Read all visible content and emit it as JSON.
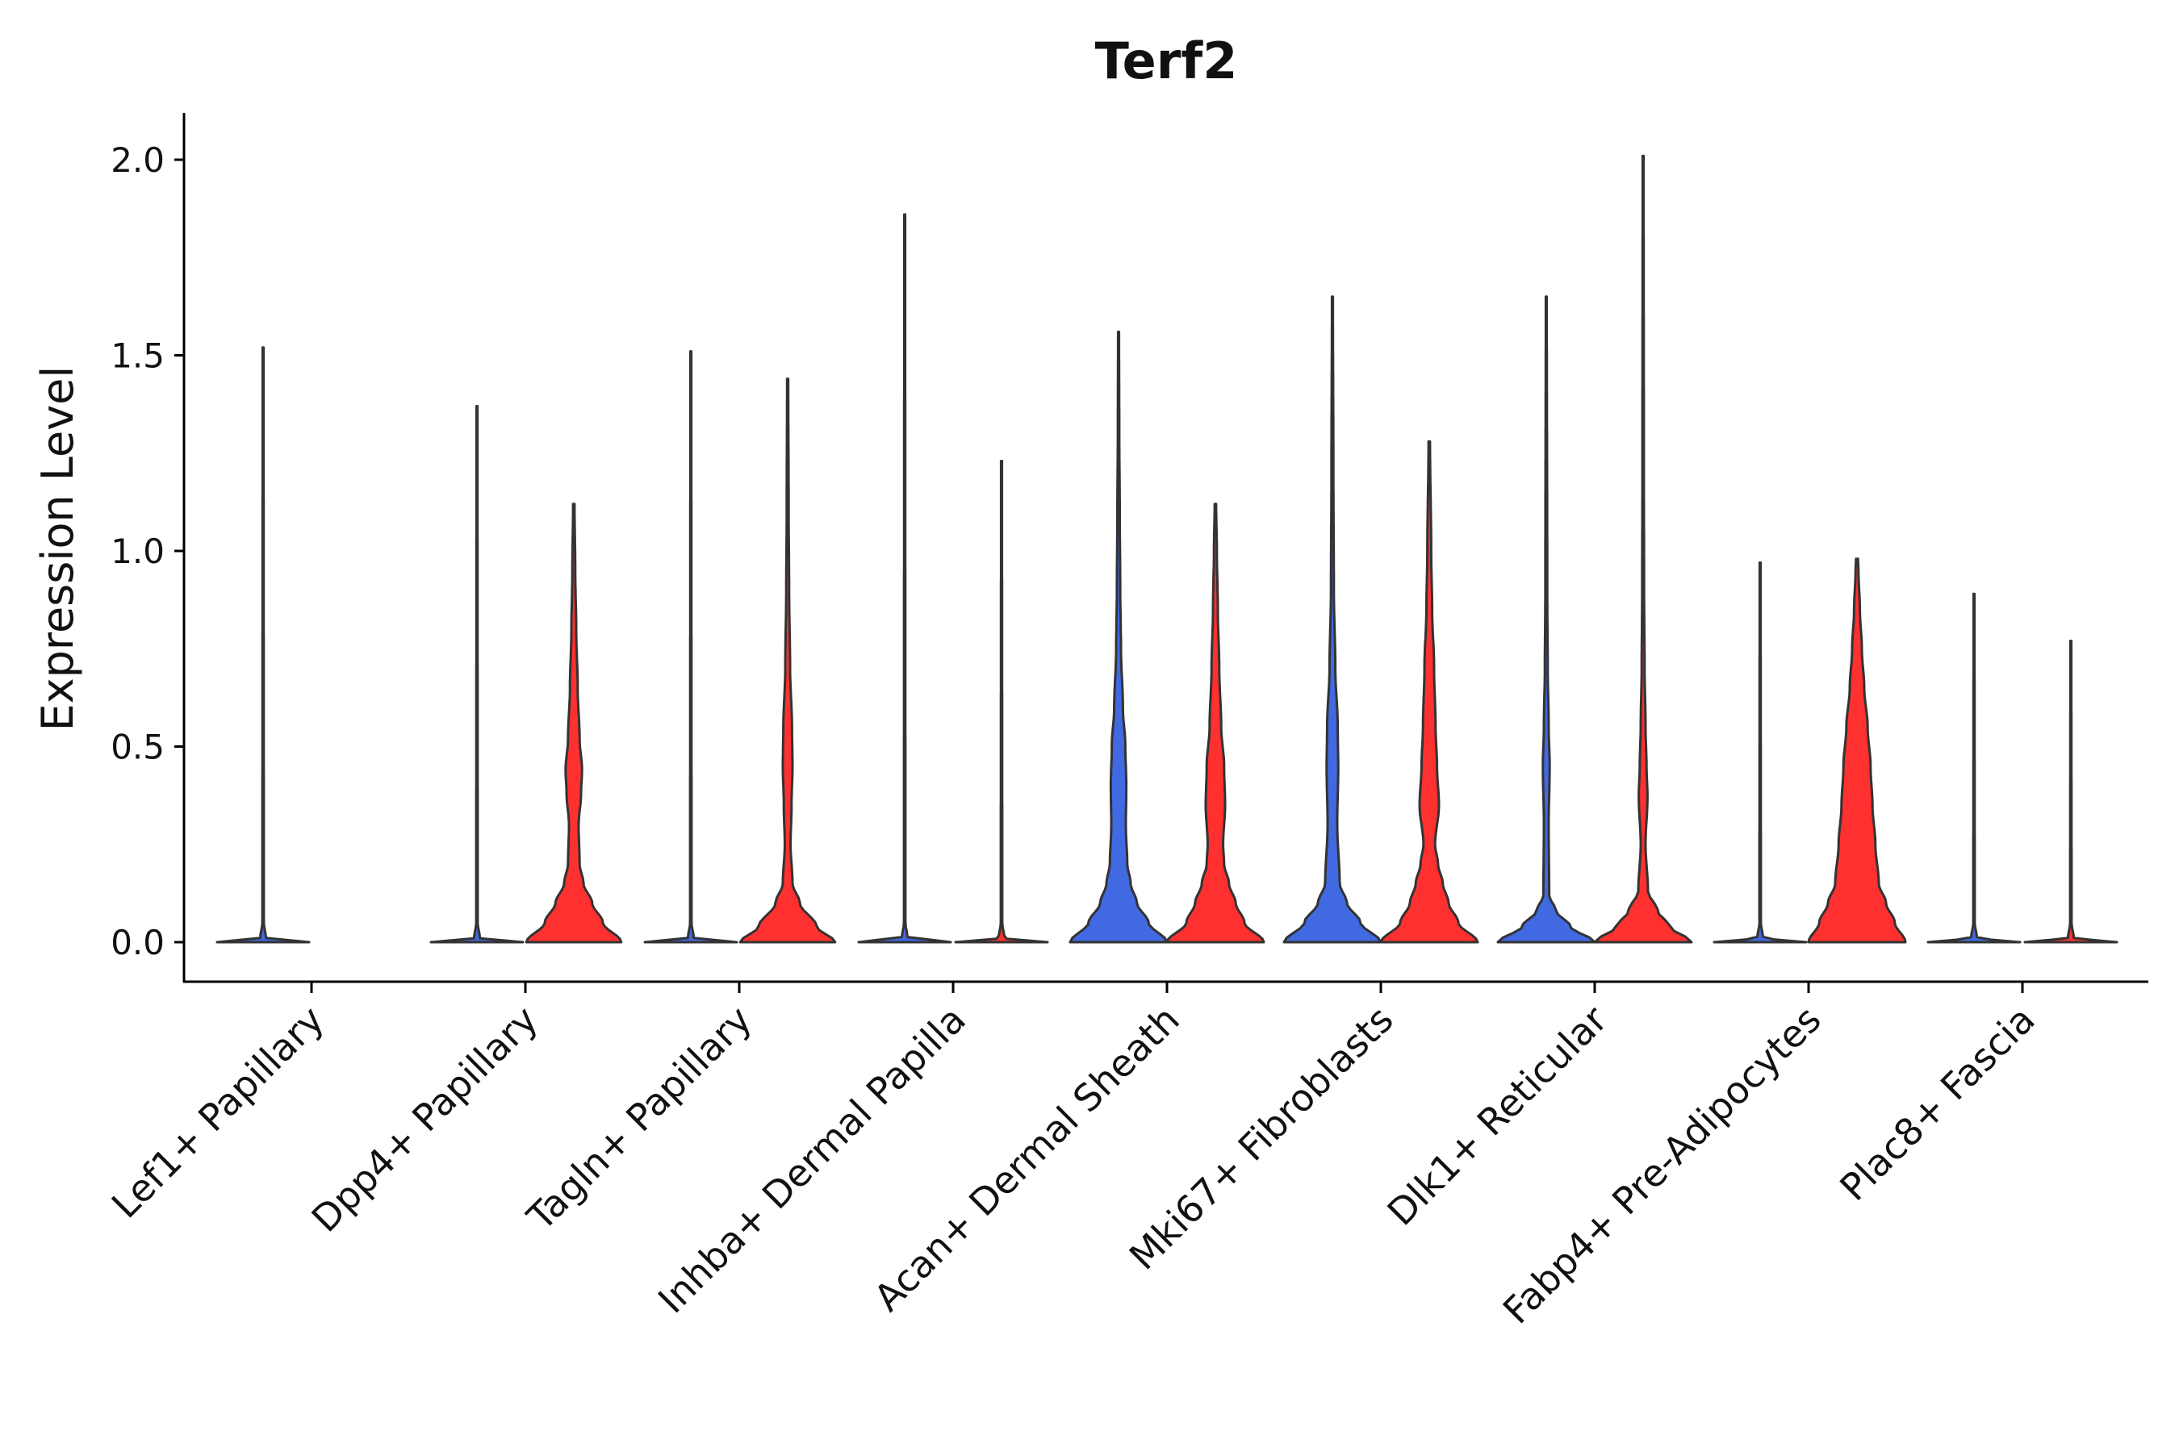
{
  "chart_data": {
    "type": "violin",
    "title": "Terf2",
    "xlabel": "",
    "ylabel": "Expression Level",
    "ylim": [
      -0.1,
      2.12
    ],
    "yticks": [
      0.0,
      0.5,
      1.0,
      1.5,
      2.0
    ],
    "ytick_labels": [
      "0.0",
      "0.5",
      "1.0",
      "1.5",
      "2.0"
    ],
    "grid": false,
    "legend": "none",
    "colors": {
      "group_a": "#4169E1",
      "group_b": "#FF3030",
      "outline": "#333333"
    },
    "categories": [
      "Lef1+ Papillary",
      "Dpp4+ Papillary",
      "Tagln+ Papillary",
      "Inhba+ Dermal Papilla",
      "Acan+ Dermal Sheath",
      "Mki67+ Fibroblasts",
      "Dlk1+ Reticular",
      "Fabp4+ Pre-Adipocytes",
      "Plac8+ Fascia"
    ],
    "series": [
      {
        "name": "group_a",
        "color": "#4169E1",
        "max_values": [
          1.52,
          1.37,
          1.51,
          1.86,
          1.56,
          1.65,
          1.65,
          0.97,
          0.89
        ]
      },
      {
        "name": "group_b",
        "color": "#FF3030",
        "max_values": [
          0.0,
          1.12,
          1.44,
          1.23,
          1.12,
          1.28,
          2.01,
          0.98,
          0.77
        ]
      }
    ],
    "violins": [
      {
        "category": "Lef1+ Papillary",
        "group": "group_a",
        "max": 1.52,
        "profile": [
          [
            0,
            0.95
          ],
          [
            0.003,
            0.6
          ],
          [
            0.01,
            0.06
          ],
          [
            0.05,
            0.015
          ],
          [
            1.52,
            0.01
          ]
        ]
      },
      {
        "category": "Lef1+ Papillary",
        "group": "group_b",
        "max": 0.0,
        "profile": []
      },
      {
        "category": "Dpp4+ Papillary",
        "group": "group_a",
        "max": 1.37,
        "profile": [
          [
            0,
            0.95
          ],
          [
            0.003,
            0.6
          ],
          [
            0.01,
            0.06
          ],
          [
            0.05,
            0.015
          ],
          [
            1.37,
            0.01
          ]
        ]
      },
      {
        "category": "Dpp4+ Papillary",
        "group": "group_b",
        "max": 1.12,
        "profile": [
          [
            0,
            0.98
          ],
          [
            0.05,
            0.6
          ],
          [
            0.1,
            0.38
          ],
          [
            0.15,
            0.2
          ],
          [
            0.2,
            0.12
          ],
          [
            0.3,
            0.1
          ],
          [
            0.38,
            0.15
          ],
          [
            0.44,
            0.17
          ],
          [
            0.52,
            0.12
          ],
          [
            0.65,
            0.08
          ],
          [
            0.8,
            0.05
          ],
          [
            0.95,
            0.03
          ],
          [
            1.12,
            0.015
          ]
        ]
      },
      {
        "category": "Tagln+ Papillary",
        "group": "group_a",
        "max": 1.51,
        "profile": [
          [
            0,
            0.95
          ],
          [
            0.003,
            0.6
          ],
          [
            0.01,
            0.06
          ],
          [
            0.05,
            0.015
          ],
          [
            1.51,
            0.01
          ]
        ]
      },
      {
        "category": "Tagln+ Papillary",
        "group": "group_b",
        "max": 1.44,
        "profile": [
          [
            0,
            0.98
          ],
          [
            0.04,
            0.6
          ],
          [
            0.1,
            0.25
          ],
          [
            0.15,
            0.1
          ],
          [
            0.25,
            0.06
          ],
          [
            0.35,
            0.08
          ],
          [
            0.45,
            0.1
          ],
          [
            0.55,
            0.09
          ],
          [
            0.7,
            0.05
          ],
          [
            0.9,
            0.03
          ],
          [
            1.1,
            0.02
          ],
          [
            1.44,
            0.012
          ]
        ]
      },
      {
        "category": "Inhba+ Dermal Papilla",
        "group": "group_a",
        "max": 1.86,
        "profile": [
          [
            0,
            0.95
          ],
          [
            0.003,
            0.6
          ],
          [
            0.01,
            0.06
          ],
          [
            0.05,
            0.015
          ],
          [
            1.86,
            0.01
          ]
        ]
      },
      {
        "category": "Inhba+ Dermal Papilla",
        "group": "group_b",
        "max": 1.23,
        "profile": [
          [
            0,
            0.95
          ],
          [
            0.003,
            0.6
          ],
          [
            0.01,
            0.06
          ],
          [
            0.05,
            0.015
          ],
          [
            1.23,
            0.01
          ]
        ]
      },
      {
        "category": "Acan+ Dermal Sheath",
        "group": "group_a",
        "max": 1.56,
        "profile": [
          [
            0,
            1.0
          ],
          [
            0.05,
            0.62
          ],
          [
            0.1,
            0.38
          ],
          [
            0.15,
            0.25
          ],
          [
            0.2,
            0.18
          ],
          [
            0.3,
            0.15
          ],
          [
            0.4,
            0.16
          ],
          [
            0.5,
            0.14
          ],
          [
            0.6,
            0.09
          ],
          [
            0.75,
            0.05
          ],
          [
            0.9,
            0.035
          ],
          [
            1.1,
            0.025
          ],
          [
            1.3,
            0.015
          ],
          [
            1.56,
            0.01
          ]
        ]
      },
      {
        "category": "Acan+ Dermal Sheath",
        "group": "group_b",
        "max": 1.12,
        "profile": [
          [
            0,
            1.0
          ],
          [
            0.05,
            0.6
          ],
          [
            0.1,
            0.42
          ],
          [
            0.15,
            0.28
          ],
          [
            0.2,
            0.18
          ],
          [
            0.25,
            0.16
          ],
          [
            0.35,
            0.2
          ],
          [
            0.45,
            0.18
          ],
          [
            0.55,
            0.12
          ],
          [
            0.7,
            0.08
          ],
          [
            0.85,
            0.05
          ],
          [
            1.0,
            0.03
          ],
          [
            1.12,
            0.015
          ]
        ]
      },
      {
        "category": "Mki67+ Fibroblasts",
        "group": "group_a",
        "max": 1.65,
        "profile": [
          [
            0,
            1.0
          ],
          [
            0.05,
            0.58
          ],
          [
            0.1,
            0.3
          ],
          [
            0.15,
            0.15
          ],
          [
            0.3,
            0.1
          ],
          [
            0.45,
            0.12
          ],
          [
            0.55,
            0.11
          ],
          [
            0.7,
            0.06
          ],
          [
            0.9,
            0.03
          ],
          [
            1.2,
            0.02
          ],
          [
            1.65,
            0.01
          ]
        ]
      },
      {
        "category": "Mki67+ Fibroblasts",
        "group": "group_b",
        "max": 1.28,
        "profile": [
          [
            0,
            1.0
          ],
          [
            0.05,
            0.6
          ],
          [
            0.1,
            0.4
          ],
          [
            0.15,
            0.28
          ],
          [
            0.2,
            0.18
          ],
          [
            0.25,
            0.12
          ],
          [
            0.35,
            0.2
          ],
          [
            0.45,
            0.16
          ],
          [
            0.55,
            0.13
          ],
          [
            0.7,
            0.1
          ],
          [
            0.85,
            0.06
          ],
          [
            1.0,
            0.04
          ],
          [
            1.28,
            0.015
          ]
        ]
      },
      {
        "category": "Dlk1+ Reticular",
        "group": "group_a",
        "max": 1.65,
        "profile": [
          [
            0,
            1.0
          ],
          [
            0.04,
            0.5
          ],
          [
            0.08,
            0.2
          ],
          [
            0.12,
            0.06
          ],
          [
            0.3,
            0.05
          ],
          [
            0.45,
            0.07
          ],
          [
            0.55,
            0.05
          ],
          [
            0.7,
            0.03
          ],
          [
            0.9,
            0.02
          ],
          [
            1.65,
            0.01
          ]
        ]
      },
      {
        "category": "Dlk1+ Reticular",
        "group": "group_b",
        "max": 2.01,
        "profile": [
          [
            0,
            1.0
          ],
          [
            0.04,
            0.55
          ],
          [
            0.08,
            0.3
          ],
          [
            0.13,
            0.1
          ],
          [
            0.25,
            0.05
          ],
          [
            0.37,
            0.09
          ],
          [
            0.45,
            0.07
          ],
          [
            0.55,
            0.05
          ],
          [
            0.7,
            0.03
          ],
          [
            0.9,
            0.02
          ],
          [
            1.2,
            0.015
          ],
          [
            2.01,
            0.01
          ]
        ]
      },
      {
        "category": "Fabp4+ Pre-Adipocytes",
        "group": "group_a",
        "max": 0.97,
        "profile": [
          [
            0,
            0.95
          ],
          [
            0.003,
            0.6
          ],
          [
            0.01,
            0.06
          ],
          [
            0.05,
            0.015
          ],
          [
            0.97,
            0.01
          ]
        ]
      },
      {
        "category": "Fabp4+ Pre-Adipocytes",
        "group": "group_b",
        "max": 0.98,
        "profile": [
          [
            0,
            1.0
          ],
          [
            0.05,
            0.78
          ],
          [
            0.1,
            0.6
          ],
          [
            0.15,
            0.45
          ],
          [
            0.25,
            0.38
          ],
          [
            0.35,
            0.32
          ],
          [
            0.45,
            0.28
          ],
          [
            0.55,
            0.22
          ],
          [
            0.65,
            0.15
          ],
          [
            0.75,
            0.1
          ],
          [
            0.85,
            0.06
          ],
          [
            0.95,
            0.03
          ],
          [
            0.98,
            0.02
          ]
        ]
      },
      {
        "category": "Plac8+ Fascia",
        "group": "group_a",
        "max": 0.89,
        "profile": [
          [
            0,
            0.95
          ],
          [
            0.003,
            0.6
          ],
          [
            0.01,
            0.06
          ],
          [
            0.05,
            0.015
          ],
          [
            0.89,
            0.01
          ]
        ]
      },
      {
        "category": "Plac8+ Fascia",
        "group": "group_b",
        "max": 0.77,
        "profile": [
          [
            0,
            0.95
          ],
          [
            0.003,
            0.6
          ],
          [
            0.01,
            0.06
          ],
          [
            0.05,
            0.015
          ],
          [
            0.77,
            0.01
          ]
        ]
      }
    ]
  }
}
